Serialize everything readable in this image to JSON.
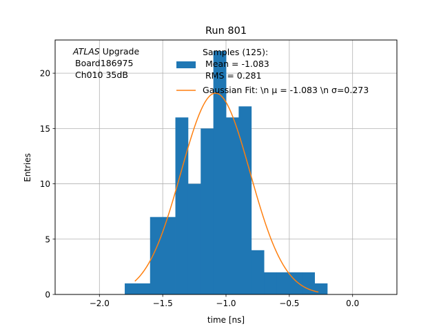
{
  "chart_data": {
    "type": "bar",
    "title": "Run 801",
    "xlabel": "time [ns]",
    "ylabel": "Entries",
    "xlim": [
      -2.35,
      0.35
    ],
    "ylim": [
      0,
      23
    ],
    "grid": true,
    "legend_position": "upper center",
    "xticks": [
      {
        "value": -2.0,
        "label": "−2.0"
      },
      {
        "value": -1.5,
        "label": "−1.5"
      },
      {
        "value": -1.0,
        "label": "−1.0"
      },
      {
        "value": -0.5,
        "label": "−0.5"
      },
      {
        "value": 0.0,
        "label": "0.0"
      }
    ],
    "yticks": [
      {
        "value": 0,
        "label": "0"
      },
      {
        "value": 5,
        "label": "5"
      },
      {
        "value": 10,
        "label": "10"
      },
      {
        "value": 15,
        "label": "15"
      },
      {
        "value": 20,
        "label": "20"
      }
    ],
    "annotation": {
      "italic_part": "ATLAS",
      "line1_rest": " Upgrade",
      "line2": "Board186975",
      "line3": "Ch010 35dB"
    },
    "series": [
      {
        "name": "Samples (125):\n Mean = -1.083\n RMS = 0.281",
        "legend_lines": [
          "Samples (125):",
          " Mean = -1.083",
          " RMS = 0.281"
        ],
        "kind": "histogram",
        "color": "#1f77b4",
        "bins": [
          {
            "x0": -1.8,
            "x1": -1.7,
            "count": 1
          },
          {
            "x0": -1.7,
            "x1": -1.6,
            "count": 1
          },
          {
            "x0": -1.6,
            "x1": -1.5,
            "count": 7
          },
          {
            "x0": -1.5,
            "x1": -1.4,
            "count": 7
          },
          {
            "x0": -1.4,
            "x1": -1.3,
            "count": 16
          },
          {
            "x0": -1.3,
            "x1": -1.2,
            "count": 10
          },
          {
            "x0": -1.2,
            "x1": -1.1,
            "count": 15
          },
          {
            "x0": -1.1,
            "x1": -1.0,
            "count": 22
          },
          {
            "x0": -1.0,
            "x1": -0.9,
            "count": 16
          },
          {
            "x0": -0.9,
            "x1": -0.8,
            "count": 17
          },
          {
            "x0": -0.8,
            "x1": -0.7,
            "count": 4
          },
          {
            "x0": -0.7,
            "x1": -0.6,
            "count": 2
          },
          {
            "x0": -0.6,
            "x1": -0.5,
            "count": 2
          },
          {
            "x0": -0.5,
            "x1": -0.4,
            "count": 2
          },
          {
            "x0": -0.4,
            "x1": -0.3,
            "count": 2
          },
          {
            "x0": -0.3,
            "x1": -0.2,
            "count": 1
          }
        ]
      },
      {
        "name": "Gaussian Fit: \\n μ = -1.083 \\n σ=0.273",
        "legend_text": "Gaussian Fit: \\n μ = -1.083 \\n σ=0.273",
        "kind": "gaussian",
        "color": "#ff7f0e",
        "mu": -1.083,
        "sigma": 0.273,
        "amplitude": 18.2,
        "x_range": [
          -1.72,
          -0.27
        ]
      }
    ]
  }
}
